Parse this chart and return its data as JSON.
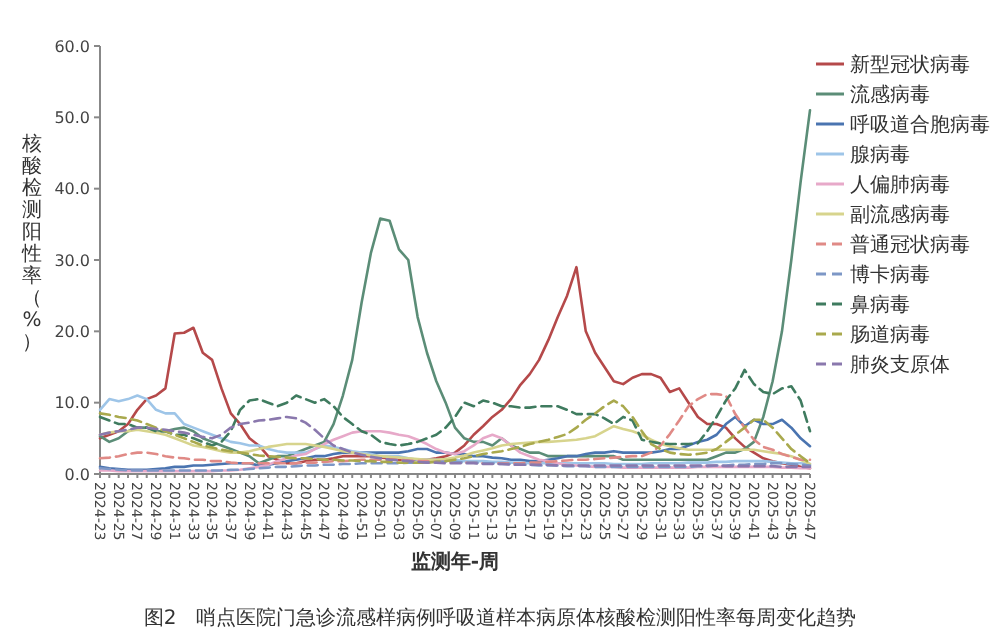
{
  "chart_data": {
    "type": "line",
    "title": "图2　哨点医院门急诊流感样病例呼吸道样本病原体核酸检测阳性率每周变化趋势",
    "xlabel": "监测年-周",
    "ylabel": "核酸检测阳性率（%）",
    "categories": [
      "2024-23",
      null,
      "2024-25",
      null,
      "2024-27",
      null,
      "2024-29",
      null,
      "2024-31",
      null,
      "2024-33",
      null,
      "2024-35",
      null,
      "2024-37",
      null,
      "2024-39",
      null,
      "2024-41",
      null,
      "2024-43",
      null,
      "2024-45",
      null,
      "2024-47",
      null,
      "2024-49",
      null,
      "2024-51",
      null,
      "2025-01",
      null,
      "2025-03",
      null,
      "2025-05",
      null,
      "2025-07",
      null,
      "2025-09",
      null,
      "2025-11",
      null,
      "2025-13",
      null,
      "2025-15",
      null,
      "2025-17",
      null,
      "2025-19",
      null,
      "2025-21",
      null,
      "2025-23",
      null,
      "2025-25",
      null,
      "2025-27",
      null,
      "2025-29",
      null,
      "2025-31",
      null,
      "2025-33",
      null,
      "2025-35",
      null,
      "2025-37",
      null,
      "2025-39",
      null,
      "2025-41",
      null,
      "2025-43",
      null,
      "2025-45",
      null,
      "2025-47"
    ],
    "ylim": [
      0,
      60
    ],
    "yticks": [
      {
        "value": 0,
        "label": "0.0"
      },
      {
        "value": 10,
        "label": "10.0"
      },
      {
        "value": 20,
        "label": "20.0"
      },
      {
        "value": 30,
        "label": "30.0"
      },
      {
        "value": 40,
        "label": "40.0"
      },
      {
        "value": 50,
        "label": "50.0"
      },
      {
        "value": 60,
        "label": "60.0"
      }
    ],
    "legend": "right",
    "series": [
      {
        "name": "新型冠状病毒",
        "color": "#b5494a",
        "line_style": "solid",
        "values": [
          5,
          5.5,
          6,
          7,
          9,
          10.5,
          11,
          12,
          19.7,
          19.8,
          20.5,
          17,
          16,
          12,
          8.5,
          7,
          5,
          4,
          2.5,
          2,
          1.5,
          1.5,
          1.8,
          2,
          2,
          2.2,
          2.5,
          2.5,
          2.5,
          2.5,
          2.3,
          2.2,
          2,
          2,
          2,
          2,
          2.2,
          2.5,
          3,
          4,
          5.5,
          6.7,
          8,
          9,
          10.5,
          12.5,
          14,
          16,
          18.8,
          22,
          25,
          29,
          20,
          17,
          15,
          13,
          12.6,
          13.5,
          14,
          14,
          13.5,
          11.5,
          12,
          10,
          8,
          7,
          7,
          6.5,
          5,
          3.8,
          3,
          2.2,
          1.8,
          1.5,
          1.3,
          1,
          0.8
        ]
      },
      {
        "name": "流感病毒",
        "color": "#5b8d77",
        "line_style": "solid",
        "values": [
          5.3,
          4.5,
          5,
          6,
          6.5,
          6.5,
          6,
          6,
          6.3,
          6.5,
          6,
          5,
          4.5,
          4,
          3.5,
          3,
          2.5,
          1.5,
          2,
          2.5,
          2.5,
          3,
          3.5,
          4,
          4.5,
          7,
          11,
          16,
          24,
          31,
          35.8,
          35.5,
          31.5,
          30,
          22,
          17,
          13,
          10,
          6.5,
          5,
          4.5,
          4.5,
          4,
          5,
          4,
          3.5,
          3,
          3,
          2.5,
          2.5,
          2.5,
          2.5,
          2.5,
          2.5,
          2.5,
          2.5,
          2,
          2,
          2,
          2,
          2,
          2,
          2,
          2,
          2,
          2,
          2.5,
          3,
          3,
          3.5,
          4.5,
          8,
          13,
          20,
          30,
          41,
          51
        ]
      },
      {
        "name": "呼吸道合胞病毒",
        "color": "#4a74b0",
        "line_style": "solid",
        "values": [
          1,
          0.8,
          0.7,
          0.6,
          0.6,
          0.6,
          0.7,
          0.8,
          1,
          1,
          1.2,
          1.2,
          1.3,
          1.4,
          1.5,
          1.5,
          1.5,
          1.2,
          1.3,
          1.5,
          1.8,
          2,
          2.2,
          2.5,
          2.5,
          2.8,
          3,
          3,
          3,
          3,
          3,
          3,
          3,
          3.2,
          3.5,
          3.5,
          3,
          3,
          2.8,
          2.8,
          2.5,
          2.5,
          2.3,
          2.2,
          2,
          2,
          1.8,
          1.8,
          2,
          2.2,
          2.5,
          2.5,
          2.8,
          3,
          3,
          3.2,
          3,
          3,
          3,
          3,
          3.2,
          3.5,
          3.5,
          4,
          4.5,
          4.8,
          5.5,
          7,
          8,
          6.7,
          7.6,
          7,
          7,
          7.6,
          6.5,
          5,
          3.9
        ]
      },
      {
        "name": "腺病毒",
        "color": "#9ec5e8",
        "line_style": "solid",
        "values": [
          9,
          10.5,
          10.2,
          10.5,
          11,
          10.5,
          9,
          8.5,
          8.5,
          7,
          6.5,
          6,
          5.5,
          5,
          4.5,
          4.3,
          4,
          4,
          3.5,
          3.2,
          3,
          3,
          3,
          3.5,
          4,
          3.8,
          3.5,
          3.2,
          3,
          2.8,
          2.5,
          2.5,
          2.5,
          2.2,
          2,
          2,
          2,
          2,
          2,
          1.8,
          1.8,
          1.8,
          1.7,
          1.7,
          1.6,
          1.6,
          1.5,
          1.5,
          1.5,
          1.5,
          1.5,
          1.5,
          1.5,
          1.5,
          1.5,
          1.4,
          1.4,
          1.4,
          1.4,
          1.5,
          1.5,
          1.5,
          1.5,
          1.6,
          1.6,
          1.6,
          1.7,
          1.7,
          1.8,
          1.8,
          1.8,
          1.8,
          1.7,
          1.6,
          1.5,
          1.5,
          1.4
        ]
      },
      {
        "name": "人偏肺病毒",
        "color": "#e7a9c9",
        "line_style": "solid",
        "values": [
          0.5,
          0.5,
          0.4,
          0.4,
          0.4,
          0.4,
          0.4,
          0.4,
          0.4,
          0.4,
          0.4,
          0.4,
          0.4,
          0.5,
          0.5,
          0.6,
          0.8,
          1,
          1.3,
          1.8,
          2.2,
          2.6,
          2.8,
          3.5,
          4.2,
          4.8,
          5.3,
          5.8,
          6,
          6,
          6,
          5.8,
          5.5,
          5.3,
          4.8,
          4.2,
          3.5,
          3,
          2.8,
          3.2,
          4,
          5,
          5.5,
          5,
          4,
          3,
          2.5,
          2,
          1.8,
          1.5,
          1.3,
          1.2,
          1.1,
          1,
          1,
          1,
          0.9,
          0.9,
          0.9,
          0.9,
          0.9,
          0.9,
          0.9,
          0.9,
          1,
          1,
          1,
          1,
          1,
          1,
          1,
          1,
          1,
          0.9,
          0.9,
          0.8,
          0.8
        ]
      },
      {
        "name": "副流感病毒",
        "color": "#d7d48d",
        "line_style": "solid",
        "values": [
          5.5,
          5.8,
          6,
          6,
          6.2,
          6,
          5.8,
          5.5,
          5,
          4.5,
          4,
          3.8,
          3.5,
          3.2,
          3,
          3,
          3.2,
          3.5,
          3.8,
          4,
          4.2,
          4.2,
          4.2,
          4,
          3.8,
          3.5,
          3.2,
          3,
          2.8,
          2.6,
          2.5,
          2.4,
          2.3,
          2.2,
          2.1,
          2,
          2,
          2.1,
          2.3,
          2.6,
          3,
          3.3,
          3.6,
          4,
          4.2,
          4.3,
          4.4,
          4.5,
          4.5,
          4.6,
          4.7,
          4.8,
          5,
          5.3,
          6,
          6.7,
          6.3,
          6,
          5.5,
          4.8,
          4.2,
          3.9,
          3.6,
          3.4,
          3.4,
          3.4,
          3.4,
          3.4,
          3.4,
          3.4,
          3.4,
          3.2,
          3,
          2.8,
          2.5,
          2,
          1.4
        ]
      },
      {
        "name": "普通冠状病毒",
        "color": "#e08a86",
        "line_style": "dashed",
        "values": [
          2.2,
          2.3,
          2.5,
          2.8,
          3,
          3,
          2.8,
          2.5,
          2.3,
          2.2,
          2,
          2,
          1.8,
          1.8,
          1.6,
          1.5,
          1.5,
          1.5,
          1.5,
          1.5,
          1.5,
          1.5,
          1.6,
          1.6,
          1.7,
          1.8,
          1.8,
          1.9,
          2,
          2,
          2,
          2,
          2,
          1.9,
          1.8,
          1.8,
          1.7,
          1.7,
          1.6,
          1.6,
          1.6,
          1.5,
          1.5,
          1.5,
          1.5,
          1.5,
          1.6,
          1.6,
          1.7,
          1.8,
          1.9,
          2,
          2,
          2.1,
          2.2,
          2.3,
          2.4,
          2.5,
          2.5,
          3,
          4,
          5.6,
          7.5,
          9.5,
          10.5,
          11.2,
          11.2,
          11,
          8.4,
          6.5,
          4.8,
          3.8,
          3.4,
          2.8,
          2.4,
          2,
          2
        ]
      },
      {
        "name": "博卡病毒",
        "color": "#7d97c6",
        "line_style": "dashed",
        "values": [
          0.8,
          0.7,
          0.6,
          0.5,
          0.5,
          0.5,
          0.5,
          0.5,
          0.5,
          0.5,
          0.5,
          0.5,
          0.5,
          0.5,
          0.6,
          0.6,
          0.7,
          0.8,
          0.9,
          1,
          1,
          1.1,
          1.2,
          1.2,
          1.3,
          1.3,
          1.4,
          1.4,
          1.5,
          1.5,
          1.5,
          1.5,
          1.5,
          1.6,
          1.6,
          1.6,
          1.7,
          1.7,
          1.7,
          1.6,
          1.6,
          1.5,
          1.5,
          1.4,
          1.4,
          1.3,
          1.3,
          1.2,
          1.2,
          1.2,
          1.1,
          1.1,
          1.1,
          1,
          1,
          1,
          1,
          1,
          1,
          1,
          1,
          1,
          1,
          1,
          1.1,
          1.1,
          1.2,
          1.2,
          1.3,
          1.3,
          1.4,
          1.4,
          1.5,
          1.5,
          1.4,
          1.3,
          1.2
        ]
      },
      {
        "name": "鼻病毒",
        "color": "#3f7b5f",
        "line_style": "dashed",
        "values": [
          8,
          7.5,
          7,
          7,
          6.5,
          6.5,
          6,
          6,
          5.5,
          5.5,
          5,
          4.5,
          4,
          4.5,
          6,
          9,
          10.3,
          10.5,
          10,
          9.5,
          10,
          11,
          10.5,
          10,
          10.5,
          9.5,
          8,
          7,
          6,
          5.5,
          4.5,
          4.2,
          4,
          4.2,
          4.5,
          5,
          5.5,
          6.5,
          8,
          10,
          9.5,
          10.3,
          10,
          9.5,
          9.5,
          9.3,
          9.3,
          9.5,
          9.5,
          9.5,
          9,
          8.4,
          8.4,
          8.4,
          7.8,
          7,
          8,
          7.5,
          4.8,
          4.5,
          4.3,
          4.2,
          4.2,
          4.2,
          4.3,
          6,
          8,
          10.3,
          12,
          14.6,
          12.6,
          11.5,
          11.2,
          12,
          12.3,
          10.3,
          6
        ]
      },
      {
        "name": "肠道病毒",
        "color": "#a9a94d",
        "line_style": "dashed",
        "values": [
          8.5,
          8.3,
          8,
          7.8,
          7.5,
          7,
          6.5,
          6,
          5.5,
          5,
          4.5,
          4,
          3.7,
          3.4,
          3.2,
          3,
          2.8,
          2.6,
          2.5,
          2.4,
          2.3,
          2.2,
          2.2,
          2.1,
          2,
          2,
          1.9,
          1.9,
          1.8,
          1.8,
          1.7,
          1.7,
          1.6,
          1.6,
          1.6,
          1.6,
          1.7,
          1.8,
          2,
          2.2,
          2.5,
          2.8,
          3,
          3.2,
          3.5,
          3.8,
          4.2,
          4.5,
          4.8,
          5.2,
          5.6,
          6.5,
          7.6,
          8.5,
          9.5,
          10.3,
          9.5,
          8,
          6,
          4.2,
          3.5,
          3,
          2.8,
          2.7,
          2.8,
          3,
          3.5,
          4.5,
          5.5,
          6.5,
          7.6,
          7.6,
          6.5,
          5,
          3.5,
          2.5,
          1.5
        ]
      },
      {
        "name": "肺炎支原体",
        "color": "#8a78ad",
        "line_style": "dashed",
        "values": [
          5.5,
          5.8,
          6,
          6.2,
          6.5,
          6.5,
          6.3,
          6.2,
          6,
          5.8,
          5.5,
          5.2,
          5,
          5.5,
          6.5,
          7,
          7.2,
          7.5,
          7.6,
          7.8,
          8,
          7.8,
          7.2,
          6.2,
          5,
          4,
          3.5,
          3,
          2.7,
          2.4,
          2.2,
          2,
          1.9,
          1.8,
          1.7,
          1.6,
          1.6,
          1.5,
          1.5,
          1.5,
          1.5,
          1.4,
          1.4,
          1.4,
          1.3,
          1.3,
          1.3,
          1.3,
          1.3,
          1.2,
          1.2,
          1.2,
          1.2,
          1.2,
          1.2,
          1.2,
          1.2,
          1.2,
          1.2,
          1.2,
          1.2,
          1.2,
          1.2,
          1.2,
          1.2,
          1.2,
          1.2,
          1.1,
          1.1,
          1.1,
          1.1,
          1.1,
          1.1,
          1,
          1,
          1,
          1
        ]
      }
    ]
  }
}
